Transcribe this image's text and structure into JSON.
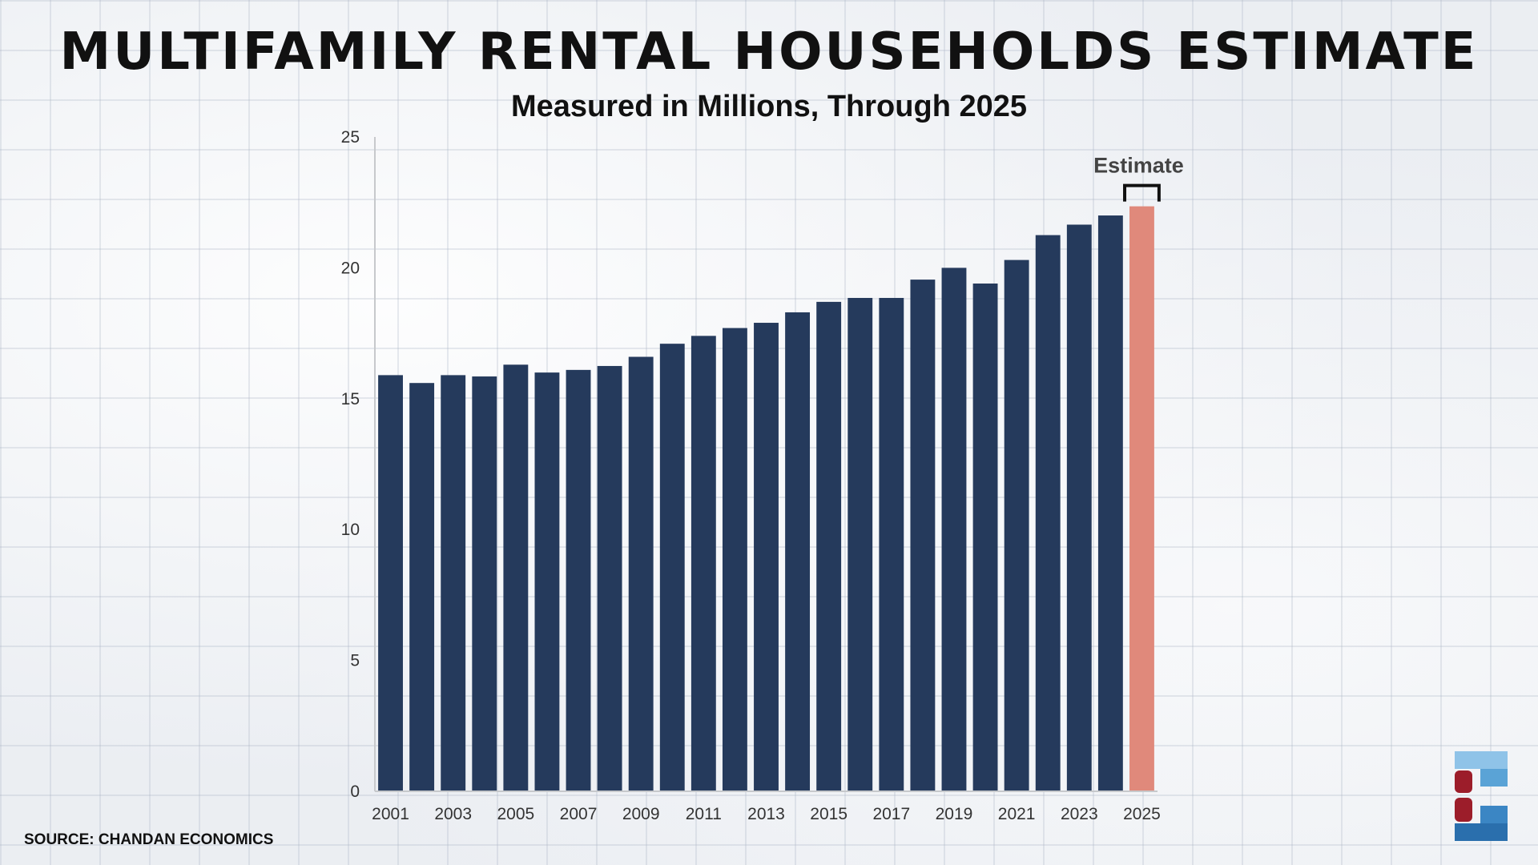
{
  "title": "MULTIFAMILY RENTAL HOUSEHOLDS ESTIMATE",
  "subtitle": "Measured in Millions, Through 2025",
  "source": "SOURCE: CHANDAN ECONOMICS",
  "colors": {
    "actual": "#253a5c",
    "estimate": "#e0897b",
    "axis": "#c7c9cc",
    "text": "#333333"
  },
  "chart_data": {
    "type": "bar",
    "title": "MULTIFAMILY RENTAL HOUSEHOLDS ESTIMATE",
    "subtitle": "Measured in Millions, Through 2025",
    "xlabel": "",
    "ylabel": "",
    "ylim": [
      0,
      25
    ],
    "yticks": [
      0,
      5,
      10,
      15,
      20,
      25
    ],
    "grid": false,
    "categories": [
      "2001",
      "2002",
      "2003",
      "2004",
      "2005",
      "2006",
      "2007",
      "2008",
      "2009",
      "2010",
      "2011",
      "2012",
      "2013",
      "2014",
      "2015",
      "2016",
      "2017",
      "2018",
      "2019",
      "2020",
      "2021",
      "2022",
      "2023",
      "2024",
      "2025"
    ],
    "xtick_labels": [
      "2001",
      "",
      "2003",
      "",
      "2005",
      "",
      "2007",
      "",
      "2009",
      "",
      "2011",
      "",
      "2013",
      "",
      "2015",
      "",
      "2017",
      "",
      "2019",
      "",
      "2021",
      "",
      "2023",
      "",
      "2025"
    ],
    "values": [
      15.9,
      15.6,
      15.9,
      15.85,
      16.3,
      16.0,
      16.1,
      16.25,
      16.6,
      17.1,
      17.4,
      17.7,
      17.9,
      18.3,
      18.7,
      18.85,
      18.85,
      19.55,
      20.0,
      19.4,
      20.3,
      21.25,
      21.65,
      22.0,
      22.35
    ],
    "estimate_index": 24,
    "annotation": "Estimate"
  }
}
